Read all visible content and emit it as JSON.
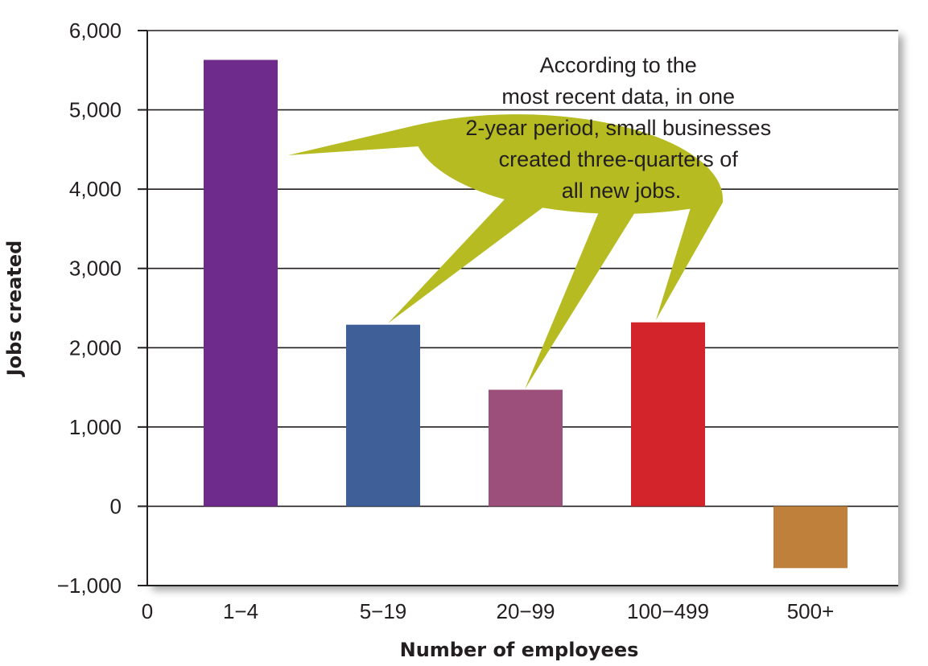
{
  "chart_data": {
    "type": "bar",
    "xlabel": "Number of employees",
    "ylabel": "Jobs created",
    "x_origin_label": "0",
    "categories": [
      "1−4",
      "5−19",
      "20−99",
      "100−499",
      "500+"
    ],
    "values": [
      5630,
      2290,
      1470,
      2320,
      -780
    ],
    "colors": [
      "#6f2b8b",
      "#3f5f98",
      "#9d4f7b",
      "#d3232b",
      "#bf803b"
    ],
    "ylim": [
      -1000,
      6000
    ],
    "yticks": [
      -1000,
      0,
      1000,
      2000,
      3000,
      4000,
      5000,
      6000
    ],
    "ytick_labels": [
      "−1,000",
      "0",
      "1,000",
      "2,000",
      "3,000",
      "4,000",
      "5,000",
      "6,000"
    ],
    "grid": true,
    "annotation": {
      "lines": [
        "According to the",
        "most recent data, in one",
        "2-year period, small businesses",
        "created three-quarters of",
        "all new jobs."
      ],
      "color": "#b5bb21",
      "pointers": [
        "1−4",
        "5−19",
        "20−99",
        "100−499"
      ]
    }
  }
}
